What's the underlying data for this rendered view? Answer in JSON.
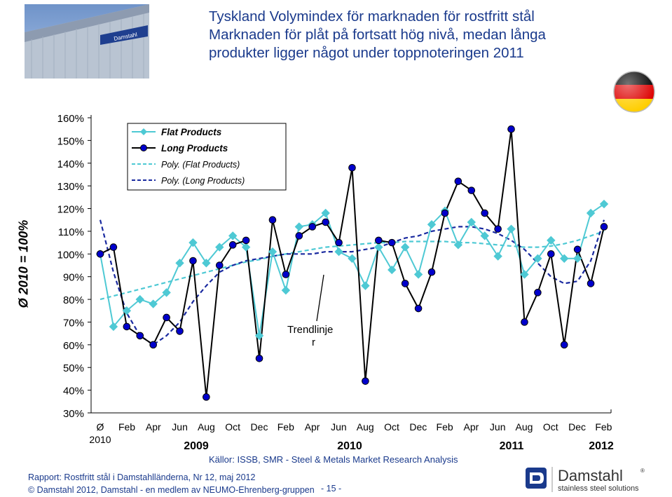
{
  "header": {
    "title_line1": "Tyskland  Volymindex för marknaden för rostfritt stål",
    "title_line2": "Marknaden för plåt på fortsatt hög nivå, medan långa",
    "title_line3": "produkter ligger något under toppnoteringen 2011",
    "photo_sign": "Damstahl"
  },
  "outer_ylabel": "Ø 2010 = 100%",
  "annotation": "Trendlinje\nr",
  "sources": "Källor: ISSB, SMR - Steel & Metals Market Research Analysis",
  "footer": {
    "report": "Rapport: Rostfritt stål i Damstahlländerna, Nr 12, maj 2012",
    "copyright": "© Damstahl 2012, Damstahl - en medlem av NEUMO-Ehrenberg-gruppen",
    "page": "- 15 -",
    "logo_name": "Damstahl",
    "logo_reg": "®",
    "logo_tagline": "stainless steel solutions"
  },
  "colors": {
    "title": "#1a3a8c",
    "flat": "#4ec9d4",
    "long": "#000000",
    "long_marker": "#0000cc",
    "poly_flat": "#4ec9d4",
    "poly_long": "#1a2aa0",
    "flag_black": "#000000",
    "flag_red": "#dd0000",
    "flag_gold": "#ffce00"
  },
  "chart_data": {
    "type": "line",
    "ylim": [
      0.3,
      1.6
    ],
    "yticks": [
      "160%",
      "150%",
      "140%",
      "130%",
      "120%",
      "110%",
      "100%",
      "90%",
      "80%",
      "70%",
      "60%",
      "50%",
      "40%",
      "30%"
    ],
    "x_first_label": "Ø",
    "x_first_sublabel": "2010",
    "x_month_labels": [
      "Feb",
      "Apr",
      "Jun",
      "Aug",
      "Oct",
      "Dec",
      "Feb",
      "Apr",
      "Jun",
      "Aug",
      "Oct",
      "Dec",
      "Feb",
      "Apr",
      "Jun",
      "Aug",
      "Oct",
      "Dec",
      "Feb"
    ],
    "year_labels": [
      "2009",
      "2010",
      "2011",
      "2012"
    ],
    "legend": [
      "Flat Products",
      "Long Products",
      "Poly. (Flat Products)",
      "Poly. (Long Products)"
    ],
    "series": [
      {
        "name": "Flat Products",
        "values": [
          1.0,
          0.68,
          0.75,
          0.8,
          0.78,
          0.83,
          0.96,
          1.05,
          0.96,
          1.03,
          1.08,
          1.03,
          0.64,
          1.01,
          0.84,
          1.12,
          1.13,
          1.18,
          1.01,
          0.98,
          0.86,
          1.03,
          0.93,
          1.03,
          0.91,
          1.13,
          1.19,
          1.04,
          1.14,
          1.08,
          0.99,
          1.11,
          0.91,
          0.98,
          1.06,
          0.98,
          0.98,
          1.18,
          1.22
        ]
      },
      {
        "name": "Long Products",
        "values": [
          1.0,
          1.03,
          0.68,
          0.64,
          0.6,
          0.72,
          0.66,
          0.97,
          0.37,
          0.95,
          1.04,
          1.06,
          0.54,
          1.15,
          0.91,
          1.08,
          1.12,
          1.14,
          1.05,
          1.38,
          0.44,
          1.06,
          1.05,
          0.87,
          0.76,
          0.92,
          1.18,
          1.32,
          1.28,
          1.18,
          1.11,
          1.55,
          0.7,
          0.83,
          1.0,
          0.6,
          1.02,
          0.87,
          1.12
        ]
      },
      {
        "name": "Poly. (Flat Products)",
        "values": [
          0.8,
          0.815,
          0.83,
          0.845,
          0.86,
          0.875,
          0.89,
          0.905,
          0.92,
          0.935,
          0.95,
          0.965,
          0.975,
          0.99,
          1.0,
          1.01,
          1.02,
          1.03,
          1.035,
          1.04,
          1.045,
          1.05,
          1.05,
          1.055,
          1.055,
          1.055,
          1.055,
          1.05,
          1.05,
          1.045,
          1.04,
          1.035,
          1.03,
          1.03,
          1.035,
          1.045,
          1.06,
          1.08,
          1.1
        ]
      },
      {
        "name": "Poly. (Long Products)",
        "values": [
          1.15,
          0.92,
          0.74,
          0.64,
          0.6,
          0.64,
          0.7,
          0.79,
          0.86,
          0.92,
          0.95,
          0.97,
          0.98,
          0.99,
          1.0,
          1.0,
          1.0,
          1.01,
          1.01,
          1.01,
          1.02,
          1.03,
          1.05,
          1.07,
          1.08,
          1.1,
          1.11,
          1.12,
          1.12,
          1.11,
          1.09,
          1.06,
          1.02,
          0.96,
          0.9,
          0.87,
          0.88,
          0.97,
          1.15
        ]
      }
    ],
    "grid": false,
    "legend_position": "top-left"
  }
}
